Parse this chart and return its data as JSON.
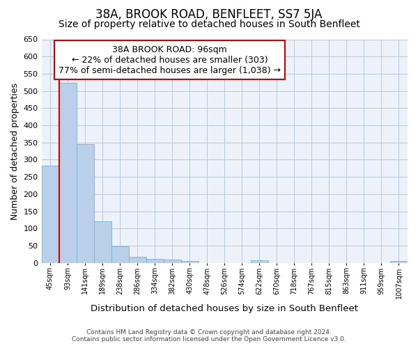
{
  "title": "38A, BROOK ROAD, BENFLEET, SS7 5JA",
  "subtitle": "Size of property relative to detached houses in South Benfleet",
  "xlabel": "Distribution of detached houses by size in South Benfleet",
  "ylabel": "Number of detached properties",
  "footer_line1": "Contains HM Land Registry data © Crown copyright and database right 2024.",
  "footer_line2": "Contains public sector information licensed under the Open Government Licence v3.0.",
  "annotation_line1": "38A BROOK ROAD: 96sqm",
  "annotation_line2": "← 22% of detached houses are smaller (303)",
  "annotation_line3": "77% of semi-detached houses are larger (1,038) →",
  "bar_labels": [
    "45sqm",
    "93sqm",
    "141sqm",
    "189sqm",
    "238sqm",
    "286sqm",
    "334sqm",
    "382sqm",
    "430sqm",
    "478sqm",
    "526sqm",
    "574sqm",
    "622sqm",
    "670sqm",
    "718sqm",
    "767sqm",
    "815sqm",
    "863sqm",
    "911sqm",
    "959sqm",
    "1007sqm"
  ],
  "bar_values": [
    283,
    524,
    346,
    121,
    49,
    17,
    11,
    10,
    5,
    0,
    0,
    0,
    7,
    0,
    0,
    0,
    0,
    0,
    0,
    0,
    6
  ],
  "bar_color": "#bad0ea",
  "bar_edge_color": "#7bafd4",
  "vline_x_index": 1,
  "vline_color": "#cc0000",
  "ylim": [
    0,
    650
  ],
  "yticks": [
    0,
    50,
    100,
    150,
    200,
    250,
    300,
    350,
    400,
    450,
    500,
    550,
    600,
    650
  ],
  "bg_color": "#edf1f9",
  "title_fontsize": 12,
  "subtitle_fontsize": 10,
  "annotation_box_color": "#ffffff",
  "annotation_box_edge": "#cc0000",
  "annotation_fontsize": 9
}
